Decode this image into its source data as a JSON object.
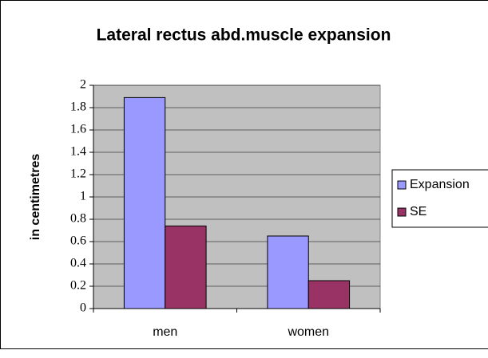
{
  "chart_data": {
    "type": "bar",
    "title": "Lateral rectus abd.muscle expansion",
    "y_label": "in centimetres",
    "categories": [
      "men",
      "women"
    ],
    "series": [
      {
        "name": "Expansion",
        "color": "#9999ff",
        "values": [
          1.89,
          0.65
        ]
      },
      {
        "name": "SE",
        "color": "#993366",
        "values": [
          0.74,
          0.25
        ]
      }
    ],
    "ylim": [
      0,
      2
    ],
    "yticks": [
      0,
      0.2,
      0.4,
      0.6,
      0.8,
      1,
      1.2,
      1.4,
      1.6,
      1.8,
      2
    ],
    "grid": true,
    "legend": "right"
  }
}
